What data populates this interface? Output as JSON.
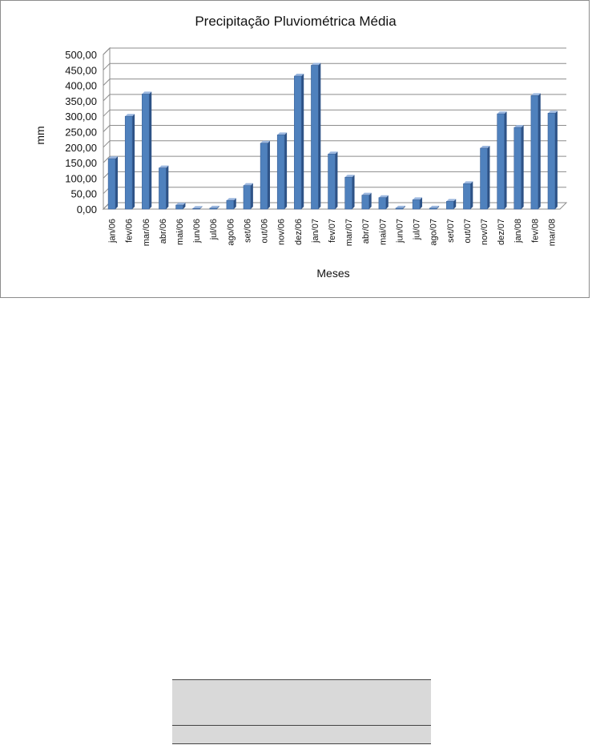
{
  "chart_data": {
    "type": "bar",
    "title": "Precipitação Pluviométrica Média",
    "xlabel": "Meses",
    "ylabel": "mm",
    "ylim": [
      0,
      500
    ],
    "y_ticks": [
      "0,00",
      "50,00",
      "100,00",
      "150,00",
      "200,00",
      "250,00",
      "300,00",
      "350,00",
      "400,00",
      "450,00",
      "500,00"
    ],
    "grid": true,
    "bar_color": "#4f81bd",
    "categories": [
      "jan/06",
      "fev/06",
      "mar/06",
      "abr/06",
      "mai/06",
      "jun/06",
      "jul/06",
      "ago/06",
      "set/06",
      "out/06",
      "nov/06",
      "dez/06",
      "jan/07",
      "fev/07",
      "mar/07",
      "abr/07",
      "mai/07",
      "jun/07",
      "jul/07",
      "ago/07",
      "set/07",
      "out/07",
      "nov/07",
      "dez/07",
      "jan/08",
      "fev/08",
      "mar/08"
    ],
    "values": [
      163,
      300,
      372,
      133,
      13,
      2,
      3,
      28,
      76,
      213,
      240,
      430,
      465,
      178,
      103,
      45,
      37,
      3,
      30,
      3,
      25,
      82,
      197,
      308,
      264,
      367,
      310
    ]
  }
}
